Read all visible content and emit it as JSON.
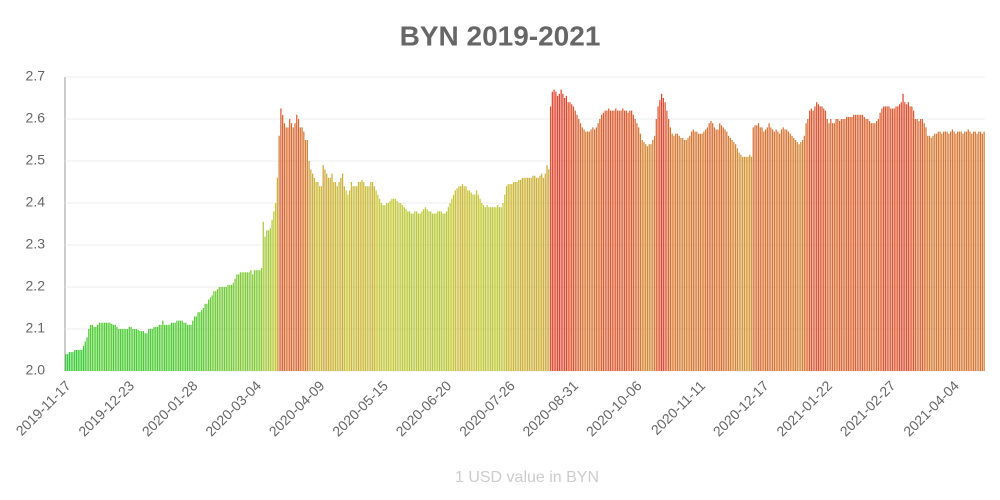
{
  "chart_data": {
    "type": "bar",
    "title": "BYN 2019-2021",
    "x_label": "1 USD value in BYN",
    "colors": [
      "#33cc33",
      "#c8c83a",
      "#e0402e"
    ],
    "ylim": [
      2.0,
      2.7
    ],
    "yticks": [
      {
        "value": 2.0,
        "label": "2.0"
      },
      2.1,
      2.2,
      2.3,
      2.4,
      2.5,
      2.6,
      {
        "value": 2.7,
        "label": "2.7"
      }
    ],
    "grid": true,
    "categories": [
      "2019-11-17",
      null,
      null,
      null,
      null,
      null,
      null,
      null,
      null,
      null,
      null,
      null,
      null,
      null,
      null,
      null,
      null,
      null,
      null,
      null,
      null,
      null,
      null,
      null,
      null,
      null,
      null,
      null,
      null,
      null,
      null,
      null,
      null,
      null,
      null,
      null,
      "2019-12-23",
      null,
      null,
      null,
      null,
      null,
      null,
      null,
      null,
      null,
      null,
      null,
      null,
      null,
      null,
      null,
      null,
      null,
      null,
      null,
      null,
      null,
      null,
      null,
      null,
      null,
      null,
      null,
      null,
      null,
      null,
      null,
      null,
      null,
      null,
      null,
      "2020-01-28",
      null,
      null,
      null,
      null,
      null,
      null,
      null,
      null,
      null,
      null,
      null,
      null,
      null,
      null,
      null,
      null,
      null,
      null,
      null,
      null,
      null,
      null,
      null,
      null,
      null,
      null,
      null,
      null,
      null,
      null,
      null,
      null,
      null,
      null,
      null,
      "2020-03-04",
      null,
      null,
      null,
      null,
      null,
      null,
      null,
      null,
      null,
      null,
      null,
      null,
      null,
      null,
      null,
      null,
      null,
      null,
      null,
      null,
      null,
      null,
      null,
      null,
      null,
      null,
      null,
      null,
      null,
      null,
      null,
      null,
      null,
      null,
      null,
      "2020-04-09",
      null,
      null,
      null,
      null,
      null,
      null,
      null,
      null,
      null,
      null,
      null,
      null,
      null,
      null,
      null,
      null,
      null,
      null,
      null,
      null,
      null,
      null,
      null,
      null,
      null,
      null,
      null,
      null,
      null,
      null,
      null,
      null,
      null,
      null,
      null,
      "2020-05-15",
      null,
      null,
      null,
      null,
      null,
      null,
      null,
      null,
      null,
      null,
      null,
      null,
      null,
      null,
      null,
      null,
      null,
      null,
      null,
      null,
      null,
      null,
      null,
      null,
      null,
      null,
      null,
      null,
      null,
      null,
      null,
      null,
      null,
      null,
      null,
      "2020-06-20",
      null,
      null,
      null,
      null,
      null,
      null,
      null,
      null,
      null,
      null,
      null,
      null,
      null,
      null,
      null,
      null,
      null,
      null,
      null,
      null,
      null,
      null,
      null,
      null,
      null,
      null,
      null,
      null,
      null,
      null,
      null,
      null,
      null,
      null,
      null,
      "2020-07-26",
      null,
      null,
      null,
      null,
      null,
      null,
      null,
      null,
      null,
      null,
      null,
      null,
      null,
      null,
      null,
      null,
      null,
      null,
      null,
      null,
      null,
      null,
      null,
      null,
      null,
      null,
      null,
      null,
      null,
      null,
      null,
      null,
      null,
      null,
      null,
      "2020-08-31",
      null,
      null,
      null,
      null,
      null,
      null,
      null,
      null,
      null,
      null,
      null,
      null,
      null,
      null,
      null,
      null,
      null,
      null,
      null,
      null,
      null,
      null,
      null,
      null,
      null,
      null,
      null,
      null,
      null,
      null,
      null,
      null,
      null,
      null,
      null,
      "2020-10-06",
      null,
      null,
      null,
      null,
      null,
      null,
      null,
      null,
      null,
      null,
      null,
      null,
      null,
      null,
      null,
      null,
      null,
      null,
      null,
      null,
      null,
      null,
      null,
      null,
      null,
      null,
      null,
      null,
      null,
      null,
      null,
      null,
      null,
      null,
      null,
      "2020-11-11",
      null,
      null,
      null,
      null,
      null,
      null,
      null,
      null,
      null,
      null,
      null,
      null,
      null,
      null,
      null,
      null,
      null,
      null,
      null,
      null,
      null,
      null,
      null,
      null,
      null,
      null,
      null,
      null,
      null,
      null,
      null,
      null,
      null,
      null,
      null,
      "2020-12-17",
      null,
      null,
      null,
      null,
      null,
      null,
      null,
      null,
      null,
      null,
      null,
      null,
      null,
      null,
      null,
      null,
      null,
      null,
      null,
      null,
      null,
      null,
      null,
      null,
      null,
      null,
      null,
      null,
      null,
      null,
      null,
      null,
      null,
      null,
      null,
      "2021-01-22",
      null,
      null,
      null,
      null,
      null,
      null,
      null,
      null,
      null,
      null,
      null,
      null,
      null,
      null,
      null,
      null,
      null,
      null,
      null,
      null,
      null,
      null,
      null,
      null,
      null,
      null,
      null,
      null,
      null,
      null,
      null,
      null,
      null,
      null,
      null,
      "2021-02-27",
      null,
      null,
      null,
      null,
      null,
      null,
      null,
      null,
      null,
      null,
      null,
      null,
      null,
      null,
      null,
      null,
      null,
      null,
      null,
      null,
      null,
      null,
      null,
      null,
      null,
      null,
      null,
      null,
      null,
      null,
      null,
      null,
      null,
      null,
      null,
      "2021-04-04",
      null,
      null,
      null,
      null,
      null,
      null,
      null,
      null,
      null,
      null,
      null,
      null,
      null,
      null,
      null,
      null,
      null
    ],
    "values": [
      2.04,
      2.04,
      2.045,
      2.045,
      2.045,
      2.05,
      2.05,
      2.05,
      2.05,
      2.05,
      2.06,
      2.07,
      2.08,
      2.1,
      2.11,
      2.11,
      2.105,
      2.105,
      2.11,
      2.115,
      2.115,
      2.115,
      2.115,
      2.115,
      2.115,
      2.115,
      2.112,
      2.11,
      2.11,
      2.105,
      2.1,
      2.1,
      2.1,
      2.1,
      2.1,
      2.1,
      2.105,
      2.105,
      2.1,
      2.1,
      2.1,
      2.098,
      2.095,
      2.095,
      2.095,
      2.09,
      2.09,
      2.1,
      2.1,
      2.1,
      2.105,
      2.105,
      2.105,
      2.11,
      2.11,
      2.12,
      2.11,
      2.11,
      2.11,
      2.11,
      2.115,
      2.115,
      2.115,
      2.12,
      2.12,
      2.12,
      2.12,
      2.115,
      2.115,
      2.11,
      2.11,
      2.11,
      2.12,
      2.13,
      2.13,
      2.14,
      2.14,
      2.145,
      2.15,
      2.16,
      2.16,
      2.17,
      2.175,
      2.18,
      2.19,
      2.19,
      2.195,
      2.2,
      2.2,
      2.2,
      2.2,
      2.2,
      2.205,
      2.205,
      2.205,
      2.21,
      2.22,
      2.23,
      2.23,
      2.235,
      2.235,
      2.235,
      2.235,
      2.235,
      2.235,
      2.24,
      2.23,
      2.24,
      2.24,
      2.24,
      2.24,
      2.245,
      2.355,
      2.32,
      2.335,
      2.335,
      2.34,
      2.36,
      2.38,
      2.4,
      2.46,
      2.56,
      2.625,
      2.61,
      2.59,
      2.58,
      2.58,
      2.6,
      2.59,
      2.58,
      2.59,
      2.61,
      2.6,
      2.58,
      2.58,
      2.57,
      2.55,
      2.55,
      2.5,
      2.48,
      2.47,
      2.46,
      2.45,
      2.45,
      2.44,
      2.44,
      2.49,
      2.48,
      2.47,
      2.46,
      2.46,
      2.47,
      2.45,
      2.45,
      2.44,
      2.45,
      2.46,
      2.47,
      2.44,
      2.43,
      2.42,
      2.43,
      2.45,
      2.44,
      2.44,
      2.44,
      2.45,
      2.45,
      2.455,
      2.45,
      2.44,
      2.44,
      2.44,
      2.45,
      2.45,
      2.44,
      2.43,
      2.42,
      2.41,
      2.4,
      2.395,
      2.395,
      2.4,
      2.4,
      2.405,
      2.41,
      2.41,
      2.41,
      2.405,
      2.4,
      2.4,
      2.395,
      2.39,
      2.385,
      2.38,
      2.38,
      2.375,
      2.375,
      2.38,
      2.38,
      2.375,
      2.375,
      2.38,
      2.385,
      2.39,
      2.385,
      2.38,
      2.38,
      2.375,
      2.375,
      2.375,
      2.38,
      2.38,
      2.38,
      2.375,
      2.375,
      2.38,
      2.39,
      2.4,
      2.41,
      2.42,
      2.43,
      2.435,
      2.44,
      2.44,
      2.445,
      2.44,
      2.44,
      2.43,
      2.43,
      2.425,
      2.42,
      2.42,
      2.43,
      2.42,
      2.41,
      2.4,
      2.395,
      2.39,
      2.395,
      2.39,
      2.39,
      2.39,
      2.39,
      2.39,
      2.395,
      2.39,
      2.39,
      2.4,
      2.42,
      2.44,
      2.445,
      2.445,
      2.445,
      2.45,
      2.45,
      2.45,
      2.455,
      2.455,
      2.46,
      2.46,
      2.46,
      2.46,
      2.46,
      2.46,
      2.465,
      2.465,
      2.46,
      2.46,
      2.465,
      2.47,
      2.46,
      2.47,
      2.49,
      2.48,
      2.63,
      2.665,
      2.67,
      2.665,
      2.655,
      2.66,
      2.67,
      2.66,
      2.65,
      2.655,
      2.64,
      2.64,
      2.635,
      2.63,
      2.62,
      2.61,
      2.6,
      2.59,
      2.58,
      2.575,
      2.57,
      2.57,
      2.57,
      2.575,
      2.58,
      2.575,
      2.58,
      2.59,
      2.6,
      2.61,
      2.615,
      2.62,
      2.62,
      2.625,
      2.62,
      2.62,
      2.62,
      2.625,
      2.62,
      2.62,
      2.62,
      2.625,
      2.62,
      2.62,
      2.615,
      2.62,
      2.62,
      2.61,
      2.6,
      2.59,
      2.58,
      2.565,
      2.55,
      2.545,
      2.54,
      2.535,
      2.54,
      2.54,
      2.55,
      2.56,
      2.6,
      2.63,
      2.645,
      2.66,
      2.65,
      2.64,
      2.62,
      2.6,
      2.58,
      2.565,
      2.56,
      2.565,
      2.565,
      2.56,
      2.555,
      2.555,
      2.55,
      2.55,
      2.555,
      2.56,
      2.57,
      2.575,
      2.57,
      2.57,
      2.565,
      2.565,
      2.565,
      2.57,
      2.575,
      2.58,
      2.59,
      2.595,
      2.59,
      2.58,
      2.575,
      2.575,
      2.59,
      2.585,
      2.58,
      2.575,
      2.57,
      2.56,
      2.555,
      2.55,
      2.545,
      2.54,
      2.53,
      2.52,
      2.515,
      2.51,
      2.51,
      2.51,
      2.51,
      2.515,
      2.51,
      2.58,
      2.585,
      2.585,
      2.59,
      2.58,
      2.58,
      2.57,
      2.575,
      2.58,
      2.59,
      2.58,
      2.575,
      2.57,
      2.575,
      2.57,
      2.565,
      2.575,
      2.58,
      2.575,
      2.575,
      2.57,
      2.565,
      2.56,
      2.555,
      2.55,
      2.545,
      2.54,
      2.545,
      2.55,
      2.56,
      2.59,
      2.6,
      2.62,
      2.625,
      2.62,
      2.63,
      2.64,
      2.635,
      2.63,
      2.63,
      2.625,
      2.62,
      2.6,
      2.59,
      2.6,
      2.59,
      2.59,
      2.6,
      2.6,
      2.595,
      2.6,
      2.6,
      2.6,
      2.605,
      2.605,
      2.605,
      2.605,
      2.61,
      2.61,
      2.61,
      2.61,
      2.61,
      2.61,
      2.605,
      2.6,
      2.6,
      2.595,
      2.59,
      2.59,
      2.59,
      2.595,
      2.6,
      2.615,
      2.625,
      2.63,
      2.63,
      2.63,
      2.63,
      2.625,
      2.625,
      2.625,
      2.63,
      2.63,
      2.635,
      2.64,
      2.66,
      2.64,
      2.635,
      2.64,
      2.63,
      2.63,
      2.62,
      2.6,
      2.6,
      2.595,
      2.6,
      2.6,
      2.59,
      2.58,
      2.56,
      2.56,
      2.555,
      2.56,
      2.565,
      2.565,
      2.57,
      2.57,
      2.565,
      2.57,
      2.57,
      2.57,
      2.565,
      2.57,
      2.575,
      2.57,
      2.565,
      2.57,
      2.57,
      2.57,
      2.565,
      2.57,
      2.57,
      2.575,
      2.57,
      2.565,
      2.57,
      2.57,
      2.565,
      2.57,
      2.57,
      2.565,
      2.57
    ]
  }
}
